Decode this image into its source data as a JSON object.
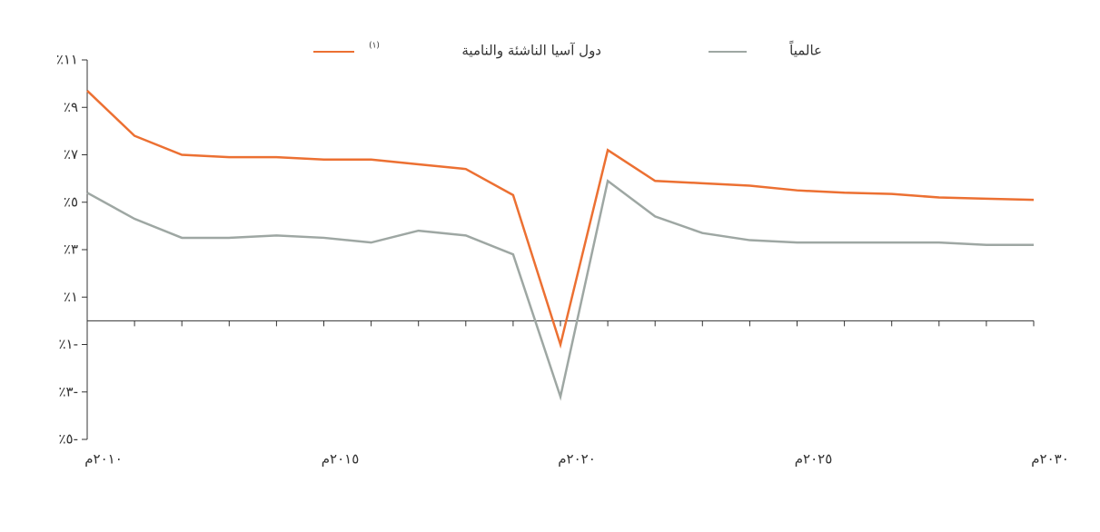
{
  "chart_data": {
    "type": "line",
    "categories": [
      "٢٠١٠م",
      null,
      null,
      null,
      null,
      "٢٠١٥م",
      null,
      null,
      null,
      null,
      "٢٠٢٠م",
      null,
      null,
      null,
      null,
      "٢٠٢٥م",
      null,
      null,
      null,
      null,
      "٢٠٣٠م"
    ],
    "series": [
      {
        "name": "دول آسيا الناشئة والنامية",
        "legend_note": "(١)",
        "color": "#ec7032",
        "values": [
          9.7,
          7.8,
          7.0,
          6.9,
          6.9,
          6.8,
          6.8,
          6.6,
          6.4,
          5.3,
          -1.0,
          7.2,
          5.9,
          5.8,
          5.7,
          5.5,
          5.4,
          5.35,
          5.2,
          5.15,
          5.1
        ]
      },
      {
        "name": "عالمياً",
        "color": "#9ea7a3",
        "values": [
          5.4,
          4.3,
          3.5,
          3.5,
          3.6,
          3.5,
          3.3,
          3.8,
          3.6,
          2.8,
          -3.2,
          5.9,
          4.4,
          3.7,
          3.4,
          3.3,
          3.3,
          3.3,
          3.3,
          3.2,
          3.2
        ]
      }
    ],
    "ylim": [
      -5,
      11
    ],
    "yticks": [
      {
        "value": -5,
        "label": "٪٥-"
      },
      {
        "value": -3,
        "label": "٪٣-"
      },
      {
        "value": -1,
        "label": "٪١-"
      },
      {
        "value": 1,
        "label": "٪١"
      },
      {
        "value": 3,
        "label": "٪٣"
      },
      {
        "value": 5,
        "label": "٪٥"
      },
      {
        "value": 7,
        "label": "٪٧"
      },
      {
        "value": 9,
        "label": "٪٩"
      },
      {
        "value": 11,
        "label": "٪١١"
      }
    ]
  }
}
